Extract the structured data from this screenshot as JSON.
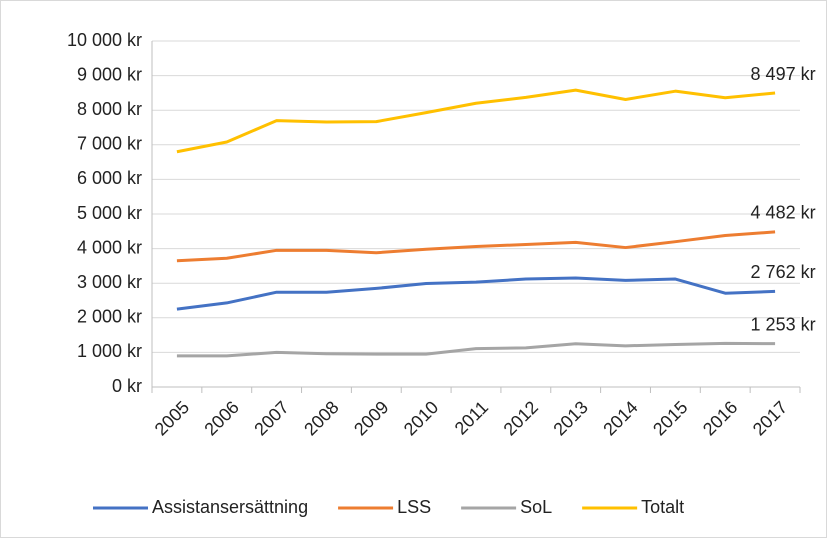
{
  "chart_data": {
    "type": "line",
    "categories": [
      "2005",
      "2006",
      "2007",
      "2008",
      "2009",
      "2010",
      "2011",
      "2012",
      "2013",
      "2014",
      "2015",
      "2016",
      "2017"
    ],
    "series": [
      {
        "name": "Assistansersättning",
        "color": "#4472c4",
        "values": [
          2250,
          2430,
          2740,
          2740,
          2850,
          2990,
          3030,
          3120,
          3150,
          3080,
          3120,
          2710,
          2762
        ],
        "value_labels": [
          null,
          null,
          null,
          null,
          null,
          null,
          null,
          null,
          null,
          null,
          null,
          null,
          "2 762 kr"
        ]
      },
      {
        "name": "LSS",
        "color": "#ed7d31",
        "values": [
          3650,
          3720,
          3950,
          3950,
          3880,
          3980,
          4060,
          4120,
          4180,
          4030,
          4200,
          4380,
          4482
        ],
        "value_labels": [
          null,
          null,
          null,
          null,
          null,
          null,
          null,
          null,
          null,
          null,
          null,
          null,
          "4 482 kr"
        ]
      },
      {
        "name": "SoL",
        "color": "#a5a5a5",
        "values": [
          900,
          900,
          1000,
          960,
          950,
          950,
          1110,
          1130,
          1250,
          1190,
          1230,
          1260,
          1253
        ],
        "value_labels": [
          null,
          null,
          null,
          null,
          null,
          null,
          null,
          null,
          null,
          null,
          null,
          null,
          "1 253 kr"
        ]
      },
      {
        "name": "Totalt",
        "color": "#ffc000",
        "values": [
          6800,
          7080,
          7700,
          7660,
          7670,
          7930,
          8200,
          8370,
          8580,
          8310,
          8550,
          8360,
          8497
        ],
        "value_labels": [
          null,
          null,
          null,
          null,
          null,
          null,
          null,
          null,
          null,
          null,
          null,
          null,
          "8 497 kr"
        ]
      }
    ],
    "ylim": [
      0,
      10000
    ],
    "yticks": [
      {
        "value": 0,
        "label": "0 kr"
      },
      {
        "value": 1000,
        "label": "1 000 kr"
      },
      {
        "value": 2000,
        "label": "2 000 kr"
      },
      {
        "value": 3000,
        "label": "3 000 kr"
      },
      {
        "value": 4000,
        "label": "4 000 kr"
      },
      {
        "value": 5000,
        "label": "5 000 kr"
      },
      {
        "value": 6000,
        "label": "6 000 kr"
      },
      {
        "value": 7000,
        "label": "7 000 kr"
      },
      {
        "value": 8000,
        "label": "8 000 kr"
      },
      {
        "value": 9000,
        "label": "9 000 kr"
      },
      {
        "value": 10000,
        "label": "10 000 kr"
      }
    ],
    "grid": true,
    "legend": "bottom"
  }
}
